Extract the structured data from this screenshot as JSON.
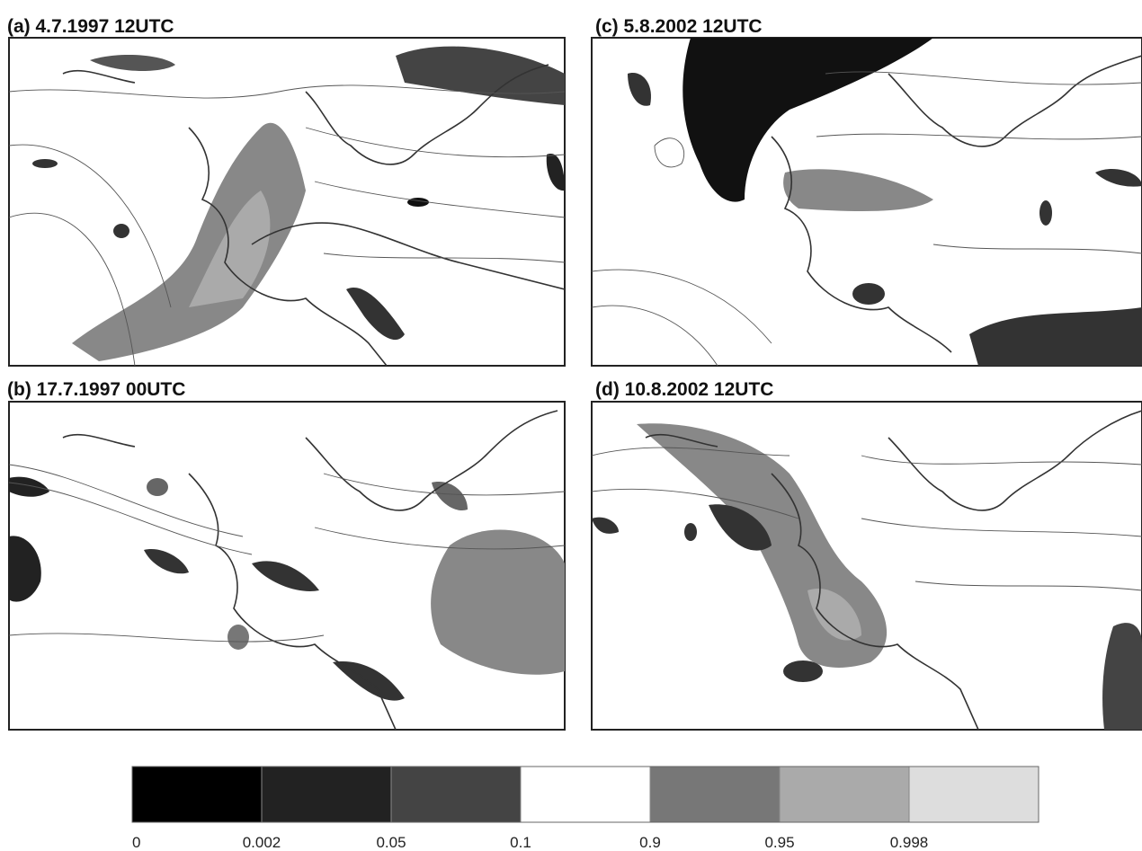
{
  "panels": [
    {
      "title": "(a) 4.7.1997 12UTC"
    },
    {
      "title": "(b) 17.7.1997 00UTC"
    },
    {
      "title": "(c) 5.8.2002 12UTC"
    },
    {
      "title": "(d) 10.8.2002 12UTC"
    }
  ],
  "colorbar": {
    "ticks": [
      0,
      0.002,
      0.05,
      0.1,
      0.9,
      0.95,
      0.998
    ],
    "colors": [
      "#000000",
      "#222222",
      "#444444",
      "#ffffff",
      "#777777",
      "#aaaaaa",
      "#dddddd"
    ]
  }
}
